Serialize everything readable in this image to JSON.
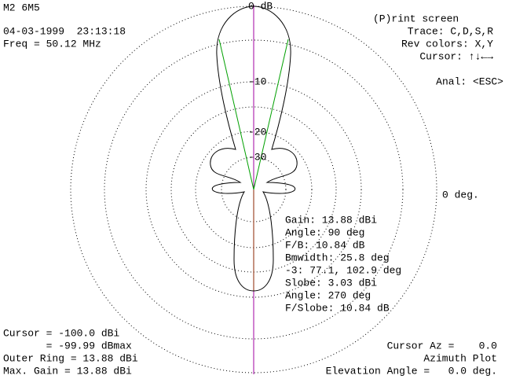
{
  "header": {
    "title": "M2 6M5",
    "datetime": "04-03-1999  23:13:18",
    "frequency": "Freq = 50.12 MHz"
  },
  "menu": {
    "print": "(P)rint screen",
    "trace": "Trace: C,D,S,R",
    "colors": "Rev colors: X,Y",
    "cursor": "Cursor: ↑↓←→",
    "analysis": "Anal: <ESC>"
  },
  "plot": {
    "ring_labels": [
      "0 dB",
      "-10",
      "-20",
      "-30"
    ],
    "direction_label": "0 deg."
  },
  "info": [
    "Gain: 13.88 dBi",
    "Angle: 90 deg",
    "F/B: 10.84 dB",
    "Bmwidth: 25.8 deg",
    "-3: 77.1, 102.9 deg",
    "Slobe: 3.03 dBi",
    "Angle: 270 deg",
    "F/Slobe: 10.84 dB"
  ],
  "footer_left": [
    "Cursor = -100.0 dBi",
    "       = -99.99 dBmax",
    "Outer Ring = 13.88 dBi",
    "Max. Gain = 13.88 dBi"
  ],
  "footer_right": [
    "Cursor Az =    0.0",
    "Azimuth Plot",
    "Elevation Angle =   0.0 deg."
  ]
}
